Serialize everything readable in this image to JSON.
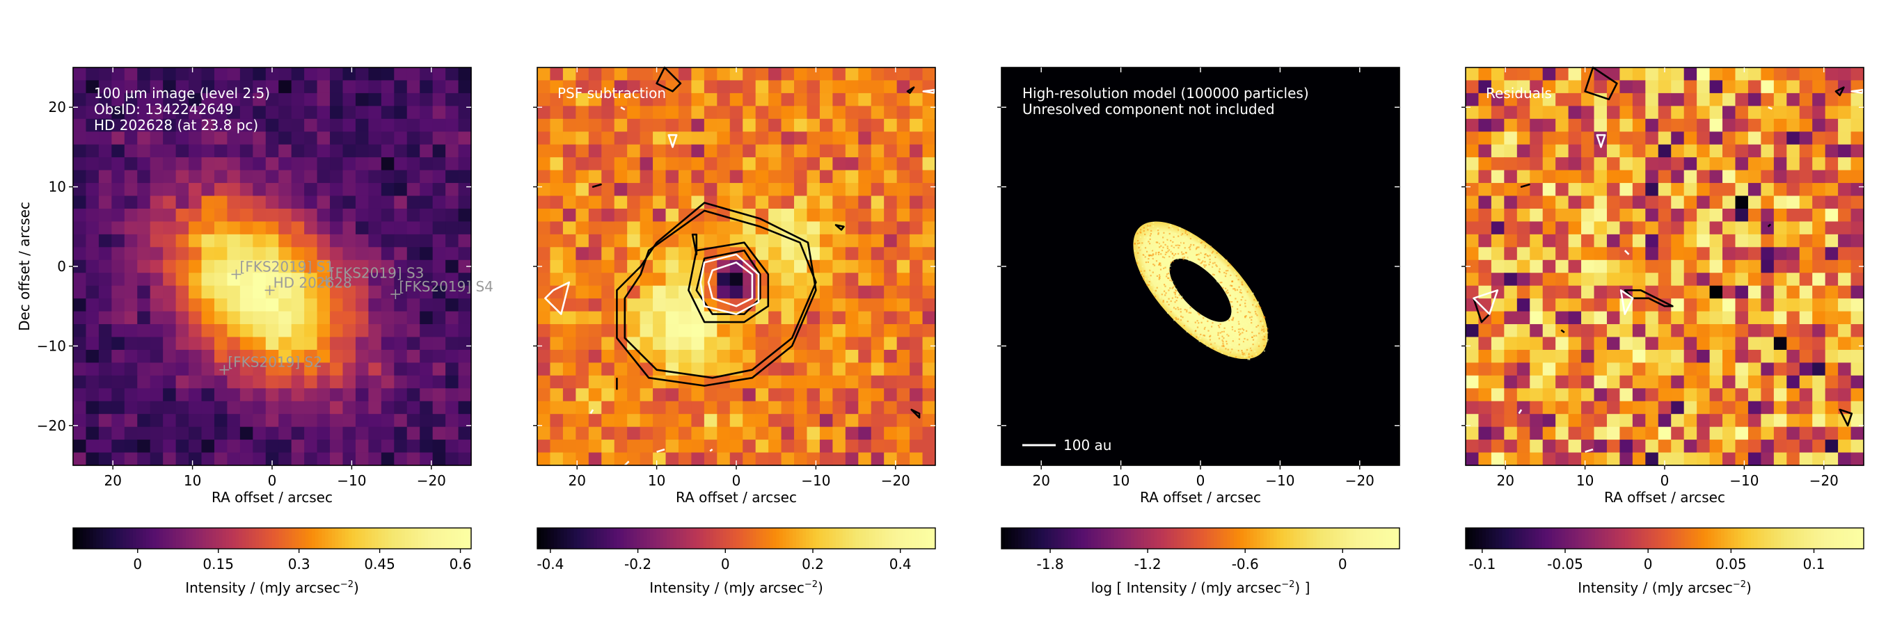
{
  "figure": {
    "panels": [
      {
        "id": "p1",
        "kind": "image",
        "annotation_lines": [
          "100 µm image (level 2.5)",
          "ObsID: 1342242649",
          "HD 202628 (at 23.8 pc)"
        ],
        "xlabel": "RA offset / arcsec",
        "ylabel": "Dec offset / arcsec",
        "colorbar": {
          "label_lines": [
            "Intensity / (mJy arcsec",
            "−2",
            ")"
          ],
          "range": [
            -0.12,
            0.62
          ],
          "ticks": [
            0,
            0.15,
            0.3,
            0.45,
            0.6
          ],
          "tick_labels": [
            "0",
            "0.15",
            "0.3",
            "0.45",
            "0.6"
          ]
        },
        "markers": [
          {
            "label": "[FKS2019] S1",
            "x": 4.5,
            "y": -1.0
          },
          {
            "label": "HD 202628",
            "x": 0.3,
            "y": -3.0
          },
          {
            "label": "[FKS2019] S3",
            "x": -6.8,
            "y": -1.8
          },
          {
            "label": "[FKS2019] S4",
            "x": -15.5,
            "y": -3.5
          },
          {
            "label": "[FKS2019] S2",
            "x": 6.0,
            "y": -13.0
          }
        ]
      },
      {
        "id": "p2",
        "kind": "image",
        "annotation_lines": [
          "PSF subtraction"
        ],
        "xlabel": "RA offset / arcsec",
        "colorbar": {
          "label_lines": [
            "Intensity / (mJy arcsec",
            "−2",
            ")"
          ],
          "range": [
            -0.43,
            0.48
          ],
          "ticks": [
            -0.4,
            -0.2,
            0,
            0.2,
            0.4
          ],
          "tick_labels": [
            "-0.4",
            "-0.2",
            "0",
            "0.2",
            "0.4"
          ]
        }
      },
      {
        "id": "p3",
        "kind": "model",
        "annotation_lines": [
          "High-resolution model (100000 particles)",
          "Unresolved component not included"
        ],
        "scalebar_label": "100 au",
        "xlabel": "RA offset / arcsec",
        "colorbar": {
          "label_lines": [
            "log [ Intensity / (mJy arcsec",
            "−2",
            ") ]"
          ],
          "range": [
            -2.1,
            0.35
          ],
          "ticks": [
            -1.8,
            -1.2,
            -0.6,
            0
          ],
          "tick_labels": [
            "-1.8",
            "-1.2",
            "-0.6",
            "0"
          ]
        }
      },
      {
        "id": "p4",
        "kind": "image",
        "annotation_lines": [
          "Residuals"
        ],
        "xlabel": "RA offset / arcsec",
        "colorbar": {
          "label_lines": [
            "Intensity / (mJy arcsec",
            "−2",
            ")"
          ],
          "range": [
            -0.11,
            0.13
          ],
          "ticks": [
            -0.1,
            -0.05,
            0,
            0.05,
            0.1
          ],
          "tick_labels": [
            "-0.1",
            "-0.05",
            "0",
            "0.05",
            "0.1"
          ]
        }
      }
    ],
    "colormap": "inferno"
  },
  "chart_data": [
    {
      "type": "heatmap",
      "title": "",
      "subtitle_lines": [
        "100 µm image (level 2.5)",
        "ObsID: 1342242649",
        "HD 202628 (at 23.8 pc)"
      ],
      "xlabel": "RA offset / arcsec",
      "ylabel": "Dec offset / arcsec",
      "xlim": [
        25,
        -25
      ],
      "ylim": [
        -25,
        25
      ],
      "x_ticks": [
        20,
        10,
        0,
        -10,
        -20
      ],
      "y_ticks": [
        -20,
        -10,
        0,
        10,
        20
      ],
      "pixel_scale_arcsec": 1.6,
      "colorbar_label": "Intensity / (mJy arcsec−2)",
      "colorbar_range": [
        -0.12,
        0.62
      ],
      "emission_peak_value": 0.6,
      "emission_center": [
        1.5,
        -3.0
      ],
      "sources": [
        {
          "name": "[FKS2019] S1",
          "x": 4.5,
          "y": -1.0
        },
        {
          "name": "HD 202628",
          "x": 0.3,
          "y": -3.0
        },
        {
          "name": "[FKS2019] S3",
          "x": -6.8,
          "y": -1.8
        },
        {
          "name": "[FKS2019] S4",
          "x": -15.5,
          "y": -3.5
        },
        {
          "name": "[FKS2019] S2",
          "x": 6.0,
          "y": -13.0
        }
      ]
    },
    {
      "type": "heatmap",
      "title": "",
      "subtitle_lines": [
        "PSF subtraction"
      ],
      "xlabel": "RA offset / arcsec",
      "xlim": [
        25,
        -25
      ],
      "ylim": [
        -25,
        25
      ],
      "x_ticks": [
        20,
        10,
        0,
        -10,
        -20
      ],
      "colorbar_label": "Intensity / (mJy arcsec−2)",
      "colorbar_range": [
        -0.43,
        0.48
      ],
      "lobes": [
        {
          "x": 6.0,
          "y": -6.0,
          "peak": 0.47
        },
        {
          "x": -6.0,
          "y": 2.0,
          "peak": 0.33
        }
      ],
      "central_hole": {
        "x": 0.5,
        "y": -2.0,
        "min": -0.42
      },
      "contours": [
        {
          "color": "black",
          "polygons": [
            [
              [
                11,
                2
              ],
              [
                4,
                7
              ],
              [
                -3,
                5
              ],
              [
                -8,
                3
              ],
              [
                -10,
                -2
              ],
              [
                -7,
                -9
              ],
              [
                -2,
                -13
              ],
              [
                3,
                -14
              ],
              [
                10,
                -13
              ],
              [
                14,
                -9
              ],
              [
                14,
                -4
              ],
              [
                12,
                -1
              ],
              [
                11,
                2
              ]
            ],
            [
              [
                10,
                3
              ],
              [
                4,
                8
              ],
              [
                -3,
                6
              ],
              [
                -9,
                3
              ],
              [
                -10,
                -3
              ],
              [
                -7,
                -10
              ],
              [
                -2,
                -14
              ],
              [
                4,
                -15
              ],
              [
                11,
                -14
              ],
              [
                15,
                -9
              ],
              [
                15,
                -3
              ],
              [
                12,
                0
              ],
              [
                10,
                3
              ]
            ],
            [
              [
                4,
                1
              ],
              [
                -1,
                2
              ],
              [
                -3,
                -1
              ],
              [
                -3,
                -4
              ],
              [
                -1,
                -6
              ],
              [
                3,
                -6
              ],
              [
                5,
                -3
              ],
              [
                4,
                1
              ]
            ],
            [
              [
                5,
                2
              ],
              [
                -1,
                3
              ],
              [
                -4,
                -1
              ],
              [
                -4,
                -5
              ],
              [
                -1,
                -7
              ],
              [
                4,
                -7
              ],
              [
                6,
                -3
              ],
              [
                5,
                2
              ]
            ],
            [
              [
                9,
                25
              ],
              [
                7,
                23
              ],
              [
                8,
                22
              ],
              [
                10,
                23
              ],
              [
                9,
                25
              ]
            ],
            [
              [
                15,
                -14
              ],
              [
                15,
                -15.5
              ]
            ],
            [
              [
                5.5,
                4
              ],
              [
                5,
                1.5
              ],
              [
                5,
                4
              ]
            ],
            [
              [
                -13.5,
                5
              ],
              [
                -12.5,
                5.2
              ],
              [
                -13.2,
                4.6
              ],
              [
                -13.5,
                5
              ]
            ],
            [
              [
                -22,
                -18
              ],
              [
                -23,
                -18.5
              ],
              [
                -23,
                -19
              ],
              [
                -22,
                -18
              ]
            ],
            [
              [
                -21.5,
                22
              ],
              [
                -22.3,
                22.5
              ],
              [
                -21.8,
                21.8
              ],
              [
                -21.5,
                22
              ]
            ],
            [
              [
                18,
                10
              ],
              [
                17,
                10.3
              ],
              [
                18,
                10
              ]
            ]
          ]
        },
        {
          "color": "white",
          "polygons": [
            [
              [
                3,
                -0.5
              ],
              [
                0,
                0.5
              ],
              [
                -2,
                -1
              ],
              [
                -2,
                -4
              ],
              [
                0,
                -5
              ],
              [
                3,
                -4
              ],
              [
                3.5,
                -2
              ],
              [
                3,
                -0.5
              ]
            ],
            [
              [
                4,
                0.5
              ],
              [
                0,
                1.5
              ],
              [
                -2.8,
                -1
              ],
              [
                -2.8,
                -4.5
              ],
              [
                0,
                -6
              ],
              [
                4,
                -5
              ],
              [
                4.5,
                -2
              ],
              [
                4,
                0.5
              ]
            ],
            [
              [
                23,
                -3
              ],
              [
                21,
                -2
              ],
              [
                22,
                -6
              ],
              [
                24,
                -4
              ],
              [
                23,
                -3
              ]
            ],
            [
              [
                8.5,
                16.5
              ],
              [
                7.5,
                16.5
              ],
              [
                8,
                15
              ],
              [
                8.5,
                16.5
              ]
            ],
            [
              [
                -23.5,
                22
              ],
              [
                -25,
                22.2
              ],
              [
                -24.8,
                21.8
              ],
              [
                -23.5,
                22
              ]
            ],
            [
              [
                9,
                -23
              ],
              [
                10,
                -23.3
              ]
            ],
            [
              [
                18,
                -18
              ],
              [
                18.3,
                -18.5
              ]
            ],
            [
              [
                3,
                -23
              ],
              [
                3.3,
                -23.2
              ]
            ],
            [
              [
                14,
                -25
              ],
              [
                13.5,
                -24.5
              ]
            ],
            [
              [
                14.5,
                20
              ],
              [
                14,
                19.7
              ]
            ]
          ]
        }
      ]
    },
    {
      "type": "heatmap",
      "title": "",
      "subtitle_lines": [
        "High-resolution model (100000 particles)",
        "Unresolved component not included"
      ],
      "xlabel": "RA offset / arcsec",
      "xlim": [
        25,
        -25
      ],
      "ylim": [
        -25,
        25
      ],
      "x_ticks": [
        20,
        10,
        0,
        -10,
        -20
      ],
      "colorbar_label": "log [ Intensity / (mJy arcsec−2) ]",
      "colorbar_range": [
        -2.1,
        0.35
      ],
      "scalebar": {
        "label": "100 au",
        "length_arcsec": 4.2
      },
      "ring": {
        "center": [
          0.0,
          -3.0
        ],
        "semi_major_arcsec": 11.0,
        "semi_minor_arcsec": 5.0,
        "inner_fraction": 0.46,
        "position_angle_deg": 134,
        "log_intensity_edge": 0.2
      }
    },
    {
      "type": "heatmap",
      "title": "",
      "subtitle_lines": [
        "Residuals"
      ],
      "xlabel": "RA offset / arcsec",
      "xlim": [
        25,
        -25
      ],
      "ylim": [
        -25,
        25
      ],
      "x_ticks": [
        20,
        10,
        0,
        -10,
        -20
      ],
      "colorbar_label": "Intensity / (mJy arcsec−2)",
      "colorbar_range": [
        -0.11,
        0.13
      ],
      "contours": [
        {
          "color": "black",
          "polygons": [
            [
              [
                9,
                25
              ],
              [
                6,
                23
              ],
              [
                7,
                21
              ],
              [
                10,
                22
              ],
              [
                9,
                25
              ]
            ],
            [
              [
                -1,
                -5
              ],
              [
                1,
                -4
              ],
              [
                3,
                -3
              ],
              [
                5,
                -3
              ],
              [
                4,
                -4
              ],
              [
                2,
                -4
              ],
              [
                0,
                -5
              ],
              [
                -1,
                -5
              ]
            ],
            [
              [
                -22,
                -18
              ],
              [
                -23.5,
                -18.5
              ],
              [
                -23,
                -20
              ],
              [
                -22,
                -18
              ]
            ],
            [
              [
                24,
                -4
              ],
              [
                22,
                -6
              ],
              [
                23,
                -7
              ],
              [
                24,
                -4
              ]
            ],
            [
              [
                -21.5,
                22
              ],
              [
                -22.5,
                22.5
              ],
              [
                -22,
                21.5
              ],
              [
                -21.5,
                22
              ]
            ],
            [
              [
                18,
                10
              ],
              [
                17,
                10.3
              ],
              [
                18,
                10
              ]
            ],
            [
              [
                13,
                -8
              ],
              [
                12.6,
                -8.3
              ]
            ],
            [
              [
                -13,
                5
              ],
              [
                -13.3,
                5.3
              ]
            ]
          ]
        },
        {
          "color": "white",
          "polygons": [
            [
              [
                21,
                -3
              ],
              [
                22,
                -6
              ],
              [
                24,
                -4
              ],
              [
                21,
                -3
              ]
            ],
            [
              [
                8.5,
                16.5
              ],
              [
                7.5,
                16.5
              ],
              [
                8,
                15
              ],
              [
                8.5,
                16.5
              ]
            ],
            [
              [
                5.5,
                -3
              ],
              [
                4,
                -4
              ],
              [
                5,
                -6
              ],
              [
                5.5,
                -3
              ]
            ],
            [
              [
                5,
                2
              ],
              [
                4.5,
                1.5
              ]
            ],
            [
              [
                -23.5,
                22
              ],
              [
                -25,
                22.2
              ],
              [
                -24.8,
                21.8
              ],
              [
                -23.5,
                22
              ]
            ],
            [
              [
                18,
                -18
              ],
              [
                18.3,
                -18.5
              ]
            ],
            [
              [
                9,
                -23
              ],
              [
                10,
                -23.3
              ]
            ],
            [
              [
                -13,
                20
              ],
              [
                -13.5,
                19.8
              ]
            ]
          ]
        }
      ]
    }
  ]
}
